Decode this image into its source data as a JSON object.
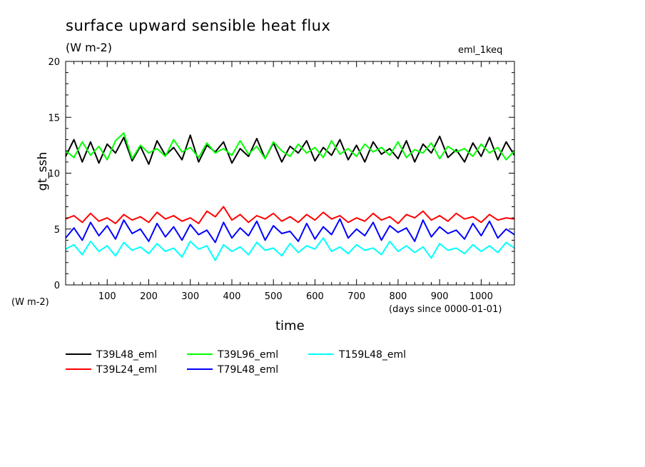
{
  "header": {
    "title": "surface upward sensible heat flux",
    "units": "(W m-2)",
    "experiment": "eml_1keq"
  },
  "chart_data": {
    "type": "line",
    "title": "surface upward sensible heat flux",
    "xlabel": "time",
    "ylabel": "gt_ssh",
    "y_units": "(W m-2)",
    "x_units": "(days since 0000-01-01)",
    "xlim": [
      0,
      1080
    ],
    "ylim": [
      0,
      20
    ],
    "x_ticks": [
      100,
      200,
      300,
      400,
      500,
      600,
      700,
      800,
      900,
      1000
    ],
    "x_tick_labels": [
      "100",
      "200",
      "300",
      "400",
      "500",
      "600",
      "700",
      "800",
      "900",
      "1000"
    ],
    "y_ticks": [
      0,
      5,
      10,
      15,
      20
    ],
    "y_tick_labels": [
      "0",
      "5",
      "10",
      "15",
      "20"
    ],
    "grid": false,
    "legend_position": "bottom",
    "series": [
      {
        "name": "T39L48_eml",
        "color": "#000000",
        "x": [
          0,
          20,
          40,
          60,
          80,
          100,
          120,
          140,
          160,
          180,
          200,
          220,
          240,
          260,
          280,
          300,
          320,
          340,
          360,
          380,
          400,
          420,
          440,
          460,
          480,
          500,
          520,
          540,
          560,
          580,
          600,
          620,
          640,
          660,
          680,
          700,
          720,
          740,
          760,
          780,
          800,
          820,
          840,
          860,
          880,
          900,
          920,
          940,
          960,
          980,
          1000,
          1020,
          1040,
          1060,
          1080
        ],
        "y": [
          11.5,
          13.0,
          11.0,
          12.8,
          10.9,
          12.6,
          11.8,
          13.2,
          11.1,
          12.4,
          10.8,
          12.9,
          11.6,
          12.3,
          11.2,
          13.4,
          11.0,
          12.5,
          11.9,
          12.8,
          10.9,
          12.2,
          11.5,
          13.1,
          11.3,
          12.7,
          11.0,
          12.4,
          11.8,
          12.9,
          11.1,
          12.3,
          11.6,
          13.0,
          11.2,
          12.5,
          11.0,
          12.8,
          11.7,
          12.2,
          11.3,
          12.9,
          11.0,
          12.6,
          11.8,
          13.3,
          11.4,
          12.1,
          11.0,
          12.7,
          11.5,
          13.2,
          11.2,
          12.8,
          11.6
        ]
      },
      {
        "name": "T39L24_eml",
        "color": "#ff0000",
        "x": [
          0,
          20,
          40,
          60,
          80,
          100,
          120,
          140,
          160,
          180,
          200,
          220,
          240,
          260,
          280,
          300,
          320,
          340,
          360,
          380,
          400,
          420,
          440,
          460,
          480,
          500,
          520,
          540,
          560,
          580,
          600,
          620,
          640,
          660,
          680,
          700,
          720,
          740,
          760,
          780,
          800,
          820,
          840,
          860,
          880,
          900,
          920,
          940,
          960,
          980,
          1000,
          1020,
          1040,
          1060,
          1080
        ],
        "y": [
          5.9,
          6.2,
          5.6,
          6.4,
          5.7,
          6.0,
          5.5,
          6.3,
          5.8,
          6.1,
          5.6,
          6.5,
          5.9,
          6.2,
          5.7,
          6.0,
          5.5,
          6.6,
          6.1,
          7.0,
          5.8,
          6.3,
          5.6,
          6.2,
          5.9,
          6.4,
          5.7,
          6.1,
          5.6,
          6.3,
          5.8,
          6.5,
          5.9,
          6.2,
          5.6,
          6.0,
          5.7,
          6.4,
          5.8,
          6.1,
          5.5,
          6.3,
          6.0,
          6.6,
          5.8,
          6.2,
          5.7,
          6.4,
          5.9,
          6.1,
          5.6,
          6.3,
          5.8,
          6.0,
          5.9
        ]
      },
      {
        "name": "T39L96_eml",
        "color": "#00ff00",
        "x": [
          0,
          20,
          40,
          60,
          80,
          100,
          120,
          140,
          160,
          180,
          200,
          220,
          240,
          260,
          280,
          300,
          320,
          340,
          360,
          380,
          400,
          420,
          440,
          460,
          480,
          500,
          520,
          540,
          560,
          580,
          600,
          620,
          640,
          660,
          680,
          700,
          720,
          740,
          760,
          780,
          800,
          820,
          840,
          860,
          880,
          900,
          920,
          940,
          960,
          980,
          1000,
          1020,
          1040,
          1060,
          1080
        ],
        "y": [
          12.0,
          11.4,
          12.8,
          11.6,
          12.4,
          11.2,
          12.9,
          13.6,
          11.3,
          12.5,
          11.8,
          12.2,
          11.5,
          13.0,
          11.9,
          12.3,
          11.4,
          12.7,
          11.8,
          12.2,
          11.6,
          12.9,
          11.7,
          12.4,
          11.3,
          12.8,
          12.0,
          11.5,
          12.6,
          11.8,
          12.3,
          11.4,
          12.9,
          11.7,
          12.2,
          11.5,
          12.6,
          11.9,
          12.3,
          11.6,
          12.8,
          11.4,
          12.1,
          11.8,
          12.7,
          11.3,
          12.4,
          11.9,
          12.2,
          11.5,
          12.6,
          11.8,
          12.3,
          11.2,
          12.0
        ]
      },
      {
        "name": "T79L48_eml",
        "color": "#0000ff",
        "x": [
          0,
          20,
          40,
          60,
          80,
          100,
          120,
          140,
          160,
          180,
          200,
          220,
          240,
          260,
          280,
          300,
          320,
          340,
          360,
          380,
          400,
          420,
          440,
          460,
          480,
          500,
          520,
          540,
          560,
          580,
          600,
          620,
          640,
          660,
          680,
          700,
          720,
          740,
          760,
          780,
          800,
          820,
          840,
          860,
          880,
          900,
          920,
          940,
          960,
          980,
          1000,
          1020,
          1040,
          1060,
          1080
        ],
        "y": [
          4.2,
          5.1,
          4.0,
          5.6,
          4.4,
          5.3,
          4.1,
          5.8,
          4.6,
          5.0,
          3.9,
          5.5,
          4.3,
          5.2,
          4.0,
          5.4,
          4.5,
          4.9,
          3.8,
          5.6,
          4.2,
          5.1,
          4.4,
          5.7,
          4.0,
          5.3,
          4.6,
          4.8,
          3.9,
          5.5,
          4.1,
          5.2,
          4.5,
          5.9,
          4.2,
          5.0,
          4.4,
          5.6,
          4.0,
          5.3,
          4.7,
          5.1,
          3.9,
          5.8,
          4.3,
          5.2,
          4.6,
          4.9,
          4.1,
          5.5,
          4.4,
          5.7,
          4.2,
          5.0,
          4.5
        ]
      },
      {
        "name": "T159L48_eml",
        "color": "#00ffff",
        "x": [
          0,
          20,
          40,
          60,
          80,
          100,
          120,
          140,
          160,
          180,
          200,
          220,
          240,
          260,
          280,
          300,
          320,
          340,
          360,
          380,
          400,
          420,
          440,
          460,
          480,
          500,
          520,
          540,
          560,
          580,
          600,
          620,
          640,
          660,
          680,
          700,
          720,
          740,
          760,
          780,
          800,
          820,
          840,
          860,
          880,
          900,
          920,
          940,
          960,
          980,
          1000,
          1020,
          1040,
          1060,
          1080
        ],
        "y": [
          3.2,
          3.6,
          2.7,
          3.9,
          3.0,
          3.5,
          2.6,
          3.8,
          3.1,
          3.4,
          2.8,
          3.7,
          3.0,
          3.3,
          2.5,
          3.9,
          3.2,
          3.5,
          2.2,
          3.6,
          3.0,
          3.4,
          2.7,
          3.8,
          3.1,
          3.3,
          2.6,
          3.7,
          2.9,
          3.5,
          3.2,
          4.2,
          3.0,
          3.4,
          2.8,
          3.6,
          3.1,
          3.3,
          2.7,
          3.9,
          3.0,
          3.5,
          2.9,
          3.4,
          2.4,
          3.7,
          3.1,
          3.3,
          2.8,
          3.6,
          3.0,
          3.5,
          2.9,
          3.8,
          3.3
        ]
      }
    ],
    "legend": {
      "rows": [
        [
          "T39L48_eml",
          "T39L96_eml",
          "T159L48_eml"
        ],
        [
          "T39L24_eml",
          "T79L48_eml"
        ]
      ]
    }
  }
}
